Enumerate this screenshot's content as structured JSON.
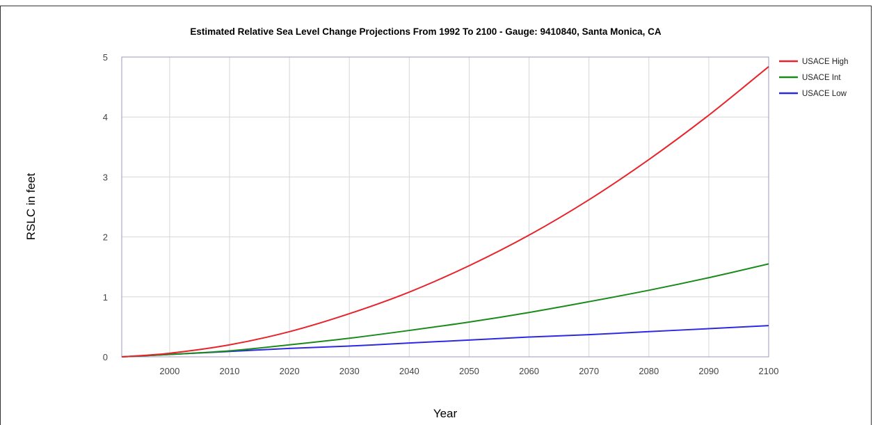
{
  "chart_data": {
    "type": "line",
    "title": "Estimated Relative Sea Level Change Projections From 1992 To 2100 - Gauge: 9410840, Santa Monica, CA",
    "xlabel": "Year",
    "ylabel": "RSLC in feet",
    "xlim": [
      1992,
      2100
    ],
    "ylim": [
      0,
      5
    ],
    "x_ticks": [
      "2000",
      "2010",
      "2020",
      "2030",
      "2040",
      "2050",
      "2060",
      "2070",
      "2080",
      "2090",
      "2100"
    ],
    "y_ticks": [
      "0",
      "1",
      "2",
      "3",
      "4",
      "5"
    ],
    "grid": true,
    "legend_position": "right",
    "x": [
      1992,
      2000,
      2010,
      2020,
      2030,
      2040,
      2050,
      2060,
      2070,
      2080,
      2090,
      2100
    ],
    "series": [
      {
        "name": "USACE High",
        "color": "#e8232a",
        "values": [
          0,
          0.06,
          0.2,
          0.42,
          0.72,
          1.08,
          1.52,
          2.03,
          2.62,
          3.29,
          4.03,
          4.84
        ]
      },
      {
        "name": "USACE Int",
        "color": "#1a8a1a",
        "values": [
          0,
          0.04,
          0.1,
          0.2,
          0.31,
          0.44,
          0.58,
          0.74,
          0.92,
          1.11,
          1.32,
          1.55
        ]
      },
      {
        "name": "USACE Low",
        "color": "#2a2ae0",
        "values": [
          0,
          0.04,
          0.09,
          0.14,
          0.18,
          0.23,
          0.28,
          0.33,
          0.37,
          0.42,
          0.47,
          0.52
        ]
      }
    ]
  }
}
